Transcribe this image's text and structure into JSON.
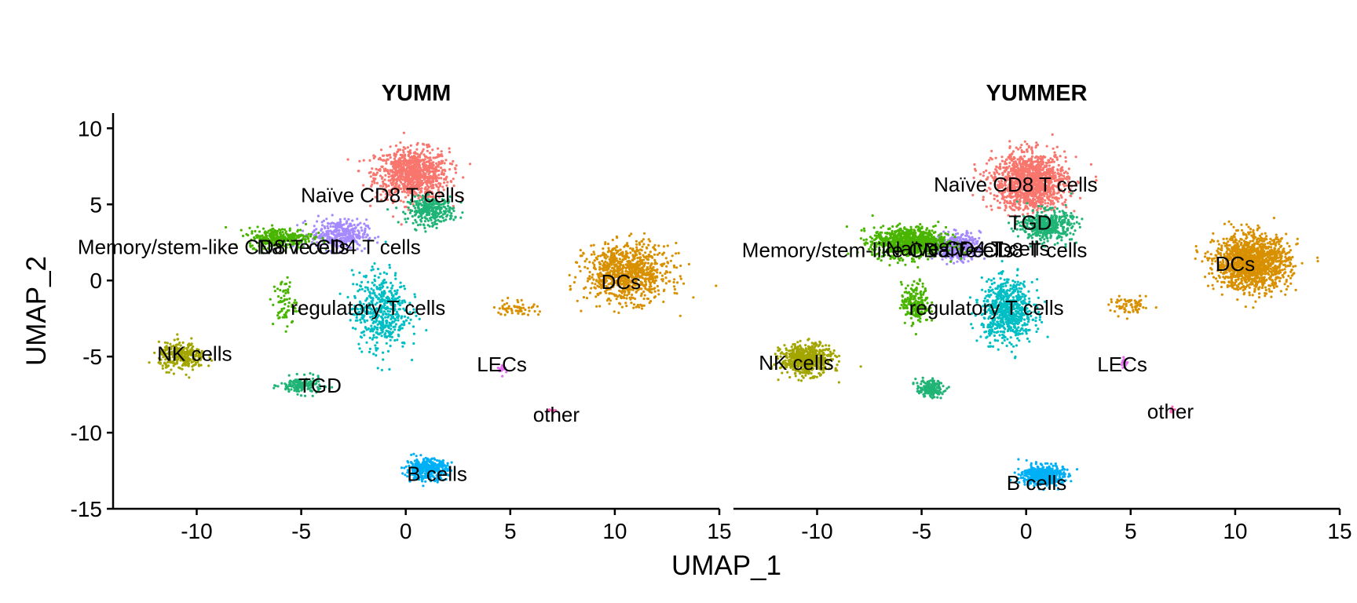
{
  "chart_data": {
    "type": "scatter",
    "xlabel": "UMAP_1",
    "ylabel": "UMAP_2",
    "xlim": [
      -14,
      15
    ],
    "ylim": [
      -15,
      11
    ],
    "xticks": [
      -10,
      -5,
      0,
      5,
      10,
      15
    ],
    "yticks": [
      10,
      5,
      0,
      -5,
      -10,
      -15
    ],
    "xtick_labels": [
      "-10",
      "-5",
      "0",
      "5",
      "10",
      "15"
    ],
    "ytick_labels": [
      "10",
      "5",
      "0",
      "-5",
      "-10",
      "-15"
    ],
    "grid": false,
    "legend": "none",
    "clusters": [
      {
        "name": "Naïve CD8 T cells",
        "color": "#F8766D"
      },
      {
        "name": "TGD",
        "color": "#1FB476"
      },
      {
        "name": "Naïve CD4 T cells",
        "color": "#A58AFF"
      },
      {
        "name": "Memory/stem-like CD8 T cells",
        "color": "#49B500"
      },
      {
        "name": "regulatory T cells",
        "color": "#00BFC4"
      },
      {
        "name": "NK cells",
        "color": "#A3A500"
      },
      {
        "name": "DCs",
        "color": "#D89000"
      },
      {
        "name": "LECs",
        "color": "#E76BF3"
      },
      {
        "name": "other",
        "color": "#FF62BC"
      },
      {
        "name": "B cells",
        "color": "#00B0F6"
      }
    ],
    "panels": [
      {
        "title": "YUMM",
        "clusters": [
          {
            "name": "Naïve CD8 T cells",
            "center": [
              0.3,
              7.0
            ],
            "spread": [
              1.6,
              1.5
            ],
            "n": 900
          },
          {
            "name": "TGD",
            "center": [
              1.2,
              4.6
            ],
            "spread": [
              1.0,
              0.8
            ],
            "n": 300
          },
          {
            "name": "TGD",
            "center": [
              -5.0,
              -6.9
            ],
            "spread": [
              0.9,
              0.5
            ],
            "n": 160
          },
          {
            "name": "Naïve CD4 T cells",
            "center": [
              -3.2,
              3.0
            ],
            "spread": [
              1.2,
              0.9
            ],
            "n": 350
          },
          {
            "name": "Memory/stem-like CD8 T cells",
            "center": [
              -6.0,
              2.8
            ],
            "spread": [
              1.4,
              0.6
            ],
            "n": 320
          },
          {
            "name": "Memory/stem-like CD8 T cells",
            "center": [
              -5.8,
              -1.5
            ],
            "spread": [
              0.5,
              1.5
            ],
            "n": 70
          },
          {
            "name": "regulatory T cells",
            "center": [
              -1.2,
              -2.0
            ],
            "spread": [
              1.2,
              2.3
            ],
            "n": 500
          },
          {
            "name": "NK cells",
            "center": [
              -10.7,
              -5.0
            ],
            "spread": [
              1.0,
              0.8
            ],
            "n": 300
          },
          {
            "name": "DCs",
            "center": [
              10.6,
              0.5
            ],
            "spread": [
              1.8,
              1.7
            ],
            "n": 900
          },
          {
            "name": "DCs",
            "center": [
              5.3,
              -1.8
            ],
            "spread": [
              0.9,
              0.5
            ],
            "n": 60
          },
          {
            "name": "LECs",
            "center": [
              4.6,
              -5.8
            ],
            "spread": [
              0.2,
              0.3
            ],
            "n": 20
          },
          {
            "name": "other",
            "center": [
              7.0,
              -8.5
            ],
            "spread": [
              0.15,
              0.15
            ],
            "n": 8
          },
          {
            "name": "B cells",
            "center": [
              1.0,
              -12.4
            ],
            "spread": [
              0.9,
              0.6
            ],
            "n": 380
          }
        ],
        "labels": [
          {
            "text": "Naïve CD8 T cells",
            "at": [
              -1.1,
              5.6
            ]
          },
          {
            "text": "Memory/stem-like CD8 T cells",
            "at": [
              -9.2,
              2.2
            ]
          },
          {
            "text": "Naïve CD4 T cells",
            "at": [
              -3.2,
              2.2
            ]
          },
          {
            "text": "DCs",
            "at": [
              10.3,
              -0.1
            ]
          },
          {
            "text": "regulatory T cells",
            "at": [
              -1.8,
              -1.8
            ]
          },
          {
            "text": "NK cells",
            "at": [
              -10.1,
              -4.8
            ]
          },
          {
            "text": "TGD",
            "at": [
              -4.1,
              -6.9
            ]
          },
          {
            "text": "LECs",
            "at": [
              4.6,
              -5.5
            ]
          },
          {
            "text": "other",
            "at": [
              7.2,
              -8.8
            ]
          },
          {
            "text": "B cells",
            "at": [
              1.5,
              -12.7
            ]
          }
        ]
      },
      {
        "title": "YUMMER",
        "clusters": [
          {
            "name": "Naïve CD8 T cells",
            "center": [
              0.2,
              6.5
            ],
            "spread": [
              1.6,
              1.7
            ],
            "n": 1300
          },
          {
            "name": "TGD",
            "center": [
              1.0,
              3.6
            ],
            "spread": [
              1.1,
              0.9
            ],
            "n": 450
          },
          {
            "name": "TGD",
            "center": [
              -4.6,
              -7.1
            ],
            "spread": [
              0.6,
              0.5
            ],
            "n": 160
          },
          {
            "name": "Naïve CD4 T cells",
            "center": [
              -3.3,
              2.2
            ],
            "spread": [
              1.0,
              0.8
            ],
            "n": 420
          },
          {
            "name": "Memory/stem-like CD8 T cells",
            "center": [
              -5.6,
              2.5
            ],
            "spread": [
              1.6,
              0.9
            ],
            "n": 900
          },
          {
            "name": "Memory/stem-like CD8 T cells",
            "center": [
              -5.3,
              -1.5
            ],
            "spread": [
              0.6,
              1.2
            ],
            "n": 200
          },
          {
            "name": "regulatory T cells",
            "center": [
              -0.9,
              -2.0
            ],
            "spread": [
              1.1,
              1.8
            ],
            "n": 700
          },
          {
            "name": "NK cells",
            "center": [
              -10.5,
              -5.2
            ],
            "spread": [
              1.1,
              0.9
            ],
            "n": 600
          },
          {
            "name": "DCs",
            "center": [
              10.8,
              1.2
            ],
            "spread": [
              1.6,
              1.6
            ],
            "n": 1400
          },
          {
            "name": "DCs",
            "center": [
              5.0,
              -1.7
            ],
            "spread": [
              0.9,
              0.5
            ],
            "n": 70
          },
          {
            "name": "LECs",
            "center": [
              4.7,
              -5.4
            ],
            "spread": [
              0.15,
              0.25
            ],
            "n": 20
          },
          {
            "name": "other",
            "center": [
              7.0,
              -8.5
            ],
            "spread": [
              0.15,
              0.15
            ],
            "n": 8
          },
          {
            "name": "B cells",
            "center": [
              0.8,
              -12.8
            ],
            "spread": [
              0.9,
              0.6
            ],
            "n": 480
          }
        ],
        "labels": [
          {
            "text": "Naïve CD8 T cells",
            "at": [
              -0.5,
              6.3
            ]
          },
          {
            "text": "TGD",
            "at": [
              0.2,
              3.8
            ]
          },
          {
            "text": "Memory/stem-like CD8 T cells",
            "at": [
              -7.1,
              2.0
            ]
          },
          {
            "text": "Naïve CD4 T cells",
            "at": [
              -2.8,
              2.1
            ]
          },
          {
            "text": "Naïve CD8 T cells",
            "at": [
              -1.0,
              2.0
            ]
          },
          {
            "text": "DCs",
            "at": [
              10.0,
              1.1
            ]
          },
          {
            "text": "regulatory T cells",
            "at": [
              -1.9,
              -1.8
            ]
          },
          {
            "text": "NK cells",
            "at": [
              -11.0,
              -5.4
            ]
          },
          {
            "text": "LECs",
            "at": [
              4.6,
              -5.5
            ]
          },
          {
            "text": "other",
            "at": [
              6.9,
              -8.6
            ]
          },
          {
            "text": "B cells",
            "at": [
              0.5,
              -13.3
            ]
          }
        ]
      }
    ]
  }
}
